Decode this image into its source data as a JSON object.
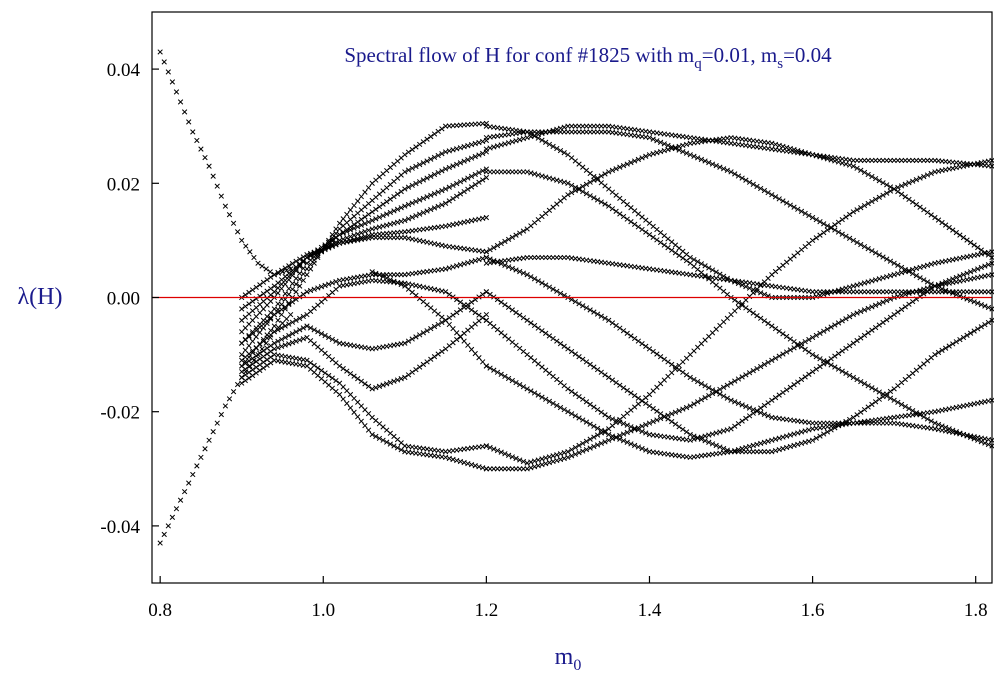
{
  "chart_data": {
    "type": "scatter",
    "title_parts": {
      "prefix": "Spectral flow of  H  for conf #1825 with m",
      "sub_q": "q",
      "mid": "=0.01, m",
      "sub_s": "s",
      "suffix": "=0.04"
    },
    "xlabel": {
      "base": "m",
      "sub": "0"
    },
    "ylabel": "λ(H)",
    "xlim": [
      0.79,
      1.82
    ],
    "ylim": [
      -0.05,
      0.05
    ],
    "x_ticks": [
      {
        "value": 0.8,
        "label": "0.8"
      },
      {
        "value": 1.0,
        "label": "1.0"
      },
      {
        "value": 1.2,
        "label": "1.2"
      },
      {
        "value": 1.4,
        "label": "1.4"
      },
      {
        "value": 1.6,
        "label": "1.6"
      },
      {
        "value": 1.8,
        "label": "1.8"
      }
    ],
    "y_ticks": [
      {
        "value": 0.04,
        "label": "0.04"
      },
      {
        "value": 0.02,
        "label": "0.02"
      },
      {
        "value": 0.0,
        "label": "0.00"
      },
      {
        "value": -0.02,
        "label": "-0.02"
      },
      {
        "value": -0.04,
        "label": "-0.04"
      }
    ],
    "zero_line": {
      "y": 0.0,
      "color": "#dd0000"
    },
    "marker": "x",
    "marker_color": "#000000",
    "series": [
      {
        "x": [
          0.8,
          0.82,
          0.84,
          0.86,
          0.88,
          0.9,
          0.92,
          0.94,
          0.96
        ],
        "y": [
          0.043,
          0.036,
          0.029,
          0.023,
          0.016,
          0.01,
          0.006,
          0.004,
          0.005
        ]
      },
      {
        "x": [
          0.8,
          0.82,
          0.84,
          0.86,
          0.88,
          0.9,
          0.92,
          0.94,
          0.96
        ],
        "y": [
          -0.043,
          -0.037,
          -0.031,
          -0.025,
          -0.019,
          -0.014,
          -0.01,
          -0.006,
          -0.003
        ]
      },
      {
        "x": [
          0.9,
          0.94,
          0.98,
          1.02,
          1.06,
          1.1,
          1.15,
          1.2
        ],
        "y": [
          -0.012,
          -0.005,
          0.004,
          0.013,
          0.02,
          0.025,
          0.03,
          0.0305
        ]
      },
      {
        "x": [
          0.9,
          0.94,
          0.98,
          1.02,
          1.06,
          1.1,
          1.15,
          1.2
        ],
        "y": [
          -0.01,
          -0.003,
          0.005,
          0.012,
          0.017,
          0.022,
          0.0255,
          0.0275
        ]
      },
      {
        "x": [
          0.9,
          0.94,
          0.98,
          1.02,
          1.06,
          1.1,
          1.15,
          1.2
        ],
        "y": [
          -0.008,
          -0.002,
          0.006,
          0.011,
          0.015,
          0.019,
          0.0225,
          0.0255
        ]
      },
      {
        "x": [
          0.9,
          0.94,
          0.98,
          1.02,
          1.06,
          1.1,
          1.15,
          1.2
        ],
        "y": [
          -0.006,
          0.0,
          0.007,
          0.011,
          0.0135,
          0.016,
          0.019,
          0.0225
        ]
      },
      {
        "x": [
          0.9,
          0.94,
          0.98,
          1.02,
          1.06,
          1.1,
          1.15,
          1.2
        ],
        "y": [
          -0.004,
          0.001,
          0.007,
          0.01,
          0.012,
          0.0135,
          0.0165,
          0.021
        ]
      },
      {
        "x": [
          0.9,
          0.94,
          0.98,
          1.02,
          1.06,
          1.1,
          1.15,
          1.2
        ],
        "y": [
          -0.002,
          0.002,
          0.007,
          0.0095,
          0.011,
          0.0115,
          0.0125,
          0.014
        ]
      },
      {
        "x": [
          0.9,
          0.94,
          0.98,
          1.02,
          1.06,
          1.1,
          1.15,
          1.2
        ],
        "y": [
          0.0,
          0.004,
          0.0075,
          0.0095,
          0.0105,
          0.0105,
          0.009,
          0.008
        ]
      },
      {
        "x": [
          0.9,
          0.94,
          0.98,
          1.02,
          1.06,
          1.1,
          1.15,
          1.2
        ],
        "y": [
          -0.008,
          -0.003,
          0.001,
          0.003,
          0.004,
          0.004,
          0.005,
          0.007
        ]
      },
      {
        "x": [
          0.9,
          0.94,
          0.98,
          1.02,
          1.06,
          1.1,
          1.15,
          1.2
        ],
        "y": [
          -0.011,
          -0.006,
          -0.003,
          0.002,
          0.003,
          0.0025,
          0.001,
          -0.004
        ]
      },
      {
        "x": [
          0.9,
          0.94,
          0.98,
          1.02,
          1.06,
          1.1,
          1.15,
          1.2
        ],
        "y": [
          -0.012,
          -0.008,
          -0.005,
          -0.008,
          -0.009,
          -0.008,
          -0.004,
          0.001
        ]
      },
      {
        "x": [
          0.9,
          0.94,
          0.98,
          1.02,
          1.06,
          1.1,
          1.15,
          1.2
        ],
        "y": [
          -0.013,
          -0.009,
          -0.007,
          -0.012,
          -0.016,
          -0.014,
          -0.009,
          -0.003
        ]
      },
      {
        "x": [
          0.9,
          0.94,
          0.98,
          1.02,
          1.06,
          1.1,
          1.15,
          1.2
        ],
        "y": [
          -0.014,
          -0.01,
          -0.011,
          -0.015,
          -0.021,
          -0.026,
          -0.027,
          -0.026
        ]
      },
      {
        "x": [
          0.9,
          0.94,
          0.98,
          1.02,
          1.06,
          1.1,
          1.15,
          1.2
        ],
        "y": [
          -0.015,
          -0.011,
          -0.012,
          -0.017,
          -0.024,
          -0.027,
          -0.028,
          -0.03
        ]
      },
      {
        "x": [
          1.06,
          1.1,
          1.15,
          1.2
        ],
        "y": [
          0.0045,
          0.002,
          -0.004,
          -0.012
        ]
      },
      {
        "x": [
          1.2,
          1.25,
          1.3,
          1.35,
          1.4,
          1.45,
          1.5,
          1.55,
          1.6,
          1.65,
          1.7,
          1.75,
          1.82
        ],
        "y": [
          0.03,
          0.029,
          0.025,
          0.019,
          0.013,
          0.007,
          0.003,
          0.0,
          0.0,
          0.002,
          0.004,
          0.006,
          0.008
        ]
      },
      {
        "x": [
          1.2,
          1.25,
          1.3,
          1.35,
          1.4,
          1.45,
          1.5,
          1.55,
          1.6,
          1.65,
          1.7,
          1.75,
          1.82
        ],
        "y": [
          0.028,
          0.029,
          0.029,
          0.029,
          0.028,
          0.025,
          0.022,
          0.018,
          0.014,
          0.01,
          0.006,
          0.002,
          -0.002
        ]
      },
      {
        "x": [
          1.2,
          1.25,
          1.3,
          1.35,
          1.4,
          1.45,
          1.5,
          1.55,
          1.6,
          1.65,
          1.7,
          1.75,
          1.82
        ],
        "y": [
          0.026,
          0.028,
          0.03,
          0.03,
          0.029,
          0.028,
          0.027,
          0.026,
          0.025,
          0.023,
          0.019,
          0.014,
          0.007
        ]
      },
      {
        "x": [
          1.2,
          1.25,
          1.3,
          1.35,
          1.4,
          1.45,
          1.5,
          1.55,
          1.6,
          1.65,
          1.7,
          1.75,
          1.82
        ],
        "y": [
          0.022,
          0.022,
          0.02,
          0.016,
          0.011,
          0.006,
          0.0,
          -0.005,
          -0.01,
          -0.014,
          -0.018,
          -0.022,
          -0.026
        ]
      },
      {
        "x": [
          1.2,
          1.25,
          1.3,
          1.35,
          1.4,
          1.45,
          1.5,
          1.55,
          1.6,
          1.65,
          1.7,
          1.75,
          1.82
        ],
        "y": [
          0.008,
          0.012,
          0.018,
          0.022,
          0.025,
          0.027,
          0.028,
          0.027,
          0.025,
          0.024,
          0.024,
          0.024,
          0.023
        ]
      },
      {
        "x": [
          1.2,
          1.25,
          1.3,
          1.35,
          1.4,
          1.45,
          1.5,
          1.55,
          1.6,
          1.65,
          1.7,
          1.75,
          1.82
        ],
        "y": [
          0.007,
          0.004,
          0.0,
          -0.004,
          -0.009,
          -0.014,
          -0.018,
          -0.021,
          -0.022,
          -0.022,
          -0.021,
          -0.02,
          -0.018
        ]
      },
      {
        "x": [
          1.2,
          1.25,
          1.3,
          1.35,
          1.4,
          1.45,
          1.5,
          1.55,
          1.6,
          1.65,
          1.7,
          1.75,
          1.82
        ],
        "y": [
          0.006,
          0.007,
          0.007,
          0.006,
          0.005,
          0.004,
          0.003,
          0.002,
          0.001,
          0.001,
          0.001,
          0.001,
          0.001
        ]
      },
      {
        "x": [
          1.2,
          1.25,
          1.3,
          1.35,
          1.4,
          1.45,
          1.5,
          1.55,
          1.6,
          1.65,
          1.7,
          1.75,
          1.82
        ],
        "y": [
          0.001,
          -0.004,
          -0.009,
          -0.014,
          -0.019,
          -0.024,
          -0.027,
          -0.027,
          -0.025,
          -0.021,
          -0.016,
          -0.01,
          -0.004
        ]
      },
      {
        "x": [
          1.2,
          1.25,
          1.3,
          1.35,
          1.4,
          1.45,
          1.5,
          1.55,
          1.6,
          1.65,
          1.7,
          1.75,
          1.82
        ],
        "y": [
          -0.004,
          -0.01,
          -0.016,
          -0.021,
          -0.024,
          -0.025,
          -0.023,
          -0.018,
          -0.013,
          -0.008,
          -0.003,
          0.002,
          0.006
        ]
      },
      {
        "x": [
          1.2,
          1.25,
          1.3,
          1.35,
          1.4,
          1.45,
          1.5,
          1.55,
          1.6,
          1.65,
          1.7,
          1.75,
          1.82
        ],
        "y": [
          -0.026,
          -0.029,
          -0.027,
          -0.023,
          -0.017,
          -0.01,
          -0.003,
          0.004,
          0.01,
          0.015,
          0.019,
          0.022,
          0.024
        ]
      },
      {
        "x": [
          1.2,
          1.25,
          1.3,
          1.35,
          1.4,
          1.45,
          1.5,
          1.55,
          1.6,
          1.65,
          1.7,
          1.75,
          1.82
        ],
        "y": [
          -0.03,
          -0.03,
          -0.028,
          -0.025,
          -0.022,
          -0.019,
          -0.015,
          -0.011,
          -0.007,
          -0.003,
          0.0,
          0.002,
          0.004
        ]
      },
      {
        "x": [
          1.2,
          1.25,
          1.3,
          1.35,
          1.4,
          1.45,
          1.5,
          1.55,
          1.6,
          1.65,
          1.7,
          1.75,
          1.82
        ],
        "y": [
          -0.012,
          -0.016,
          -0.02,
          -0.024,
          -0.027,
          -0.028,
          -0.027,
          -0.025,
          -0.023,
          -0.022,
          -0.022,
          -0.023,
          -0.025
        ]
      }
    ]
  }
}
